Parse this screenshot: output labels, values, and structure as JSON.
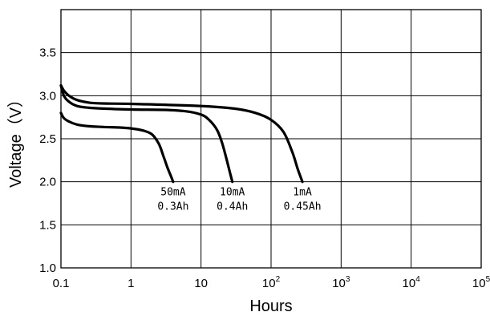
{
  "chart_data": {
    "type": "line",
    "title": "",
    "xlabel": "Hours",
    "ylabel": "Voltage（V）",
    "x_scale": "log",
    "xlim": [
      0.1,
      100000
    ],
    "ylim": [
      1.0,
      4.0
    ],
    "grid": true,
    "x_ticks": [
      {
        "base": "0.1",
        "exp": ""
      },
      {
        "base": "1",
        "exp": ""
      },
      {
        "base": "10",
        "exp": ""
      },
      {
        "base": "10",
        "exp": "2"
      },
      {
        "base": "10",
        "exp": "3"
      },
      {
        "base": "10",
        "exp": "4"
      },
      {
        "base": "10",
        "exp": "5"
      }
    ],
    "y_ticks": [
      "1.0",
      "1.5",
      "2.0",
      "2.5",
      "3.0",
      "3.5"
    ],
    "series": [
      {
        "annotation": [
          "50mA",
          "0.3Ah"
        ],
        "x": [
          0.1,
          0.11,
          0.13,
          0.17,
          0.25,
          0.4,
          0.7,
          1.0,
          1.5,
          2.0,
          2.5,
          2.9,
          3.3,
          3.7,
          4.0
        ],
        "y": [
          2.8,
          2.74,
          2.7,
          2.665,
          2.645,
          2.637,
          2.63,
          2.62,
          2.595,
          2.55,
          2.44,
          2.3,
          2.17,
          2.07,
          2.0
        ]
      },
      {
        "annotation": [
          "10mA",
          "0.4Ah"
        ],
        "x": [
          0.1,
          0.11,
          0.13,
          0.17,
          0.25,
          0.4,
          1.0,
          3.0,
          6.0,
          10,
          13,
          17,
          20,
          23,
          26,
          28
        ],
        "y": [
          3.12,
          3.0,
          2.93,
          2.88,
          2.86,
          2.85,
          2.84,
          2.835,
          2.82,
          2.78,
          2.72,
          2.6,
          2.45,
          2.27,
          2.1,
          2.0
        ]
      },
      {
        "annotation": [
          "1mA",
          "0.45Ah"
        ],
        "x": [
          0.1,
          0.11,
          0.13,
          0.17,
          0.25,
          0.4,
          1.0,
          10,
          30,
          60,
          100,
          150,
          200,
          240,
          280
        ],
        "y": [
          3.12,
          3.06,
          3.0,
          2.95,
          2.92,
          2.91,
          2.905,
          2.88,
          2.85,
          2.8,
          2.72,
          2.58,
          2.35,
          2.15,
          2.0
        ]
      }
    ]
  }
}
